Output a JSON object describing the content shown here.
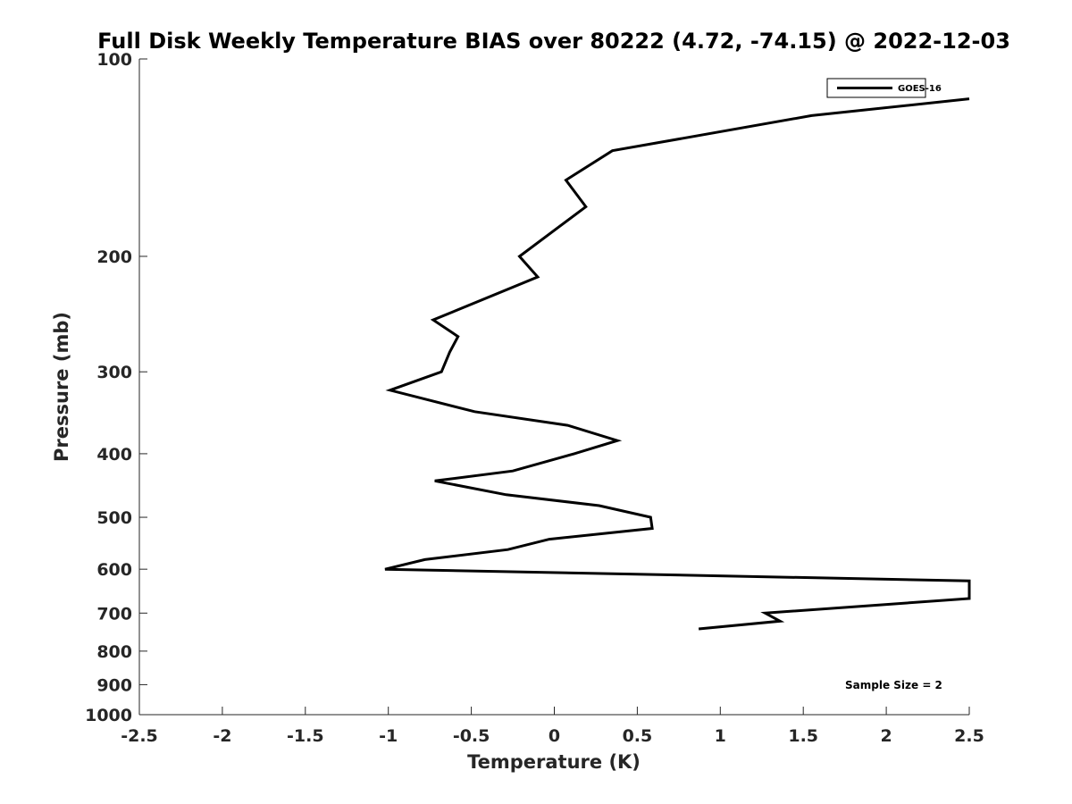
{
  "chart_data": {
    "type": "line",
    "title": "Full Disk Weekly Temperature BIAS over 80222 (4.72, -74.15) @ 2022-12-03",
    "xlabel": "Temperature (K)",
    "ylabel": "Pressure (mb)",
    "xlim": [
      -2.5,
      2.5
    ],
    "ylim": [
      100,
      1000
    ],
    "yscale": "log",
    "yreversed": true,
    "x_ticks": [
      "-2.5",
      "-2",
      "-1.5",
      "-1",
      "-0.5",
      "0",
      "0.5",
      "1",
      "1.5",
      "2",
      "2.5"
    ],
    "y_ticks": [
      "100",
      "200",
      "300",
      "400",
      "500",
      "600",
      "700",
      "800",
      "900",
      "1000"
    ],
    "grid": false,
    "legend_position": "top-right",
    "annotation": "Sample Size = 2",
    "series": [
      {
        "name": "GOES-16",
        "color": "#000000",
        "points": [
          {
            "p": 115,
            "t": 2.5
          },
          {
            "p": 122,
            "t": 1.55
          },
          {
            "p": 138,
            "t": 0.35
          },
          {
            "p": 153,
            "t": 0.07
          },
          {
            "p": 168,
            "t": 0.19
          },
          {
            "p": 200,
            "t": -0.21
          },
          {
            "p": 215,
            "t": -0.1
          },
          {
            "p": 250,
            "t": -0.73
          },
          {
            "p": 265,
            "t": -0.58
          },
          {
            "p": 280,
            "t": -0.63
          },
          {
            "p": 300,
            "t": -0.68
          },
          {
            "p": 320,
            "t": -0.99
          },
          {
            "p": 345,
            "t": -0.48
          },
          {
            "p": 362,
            "t": 0.08
          },
          {
            "p": 382,
            "t": 0.38
          },
          {
            "p": 400,
            "t": 0.12
          },
          {
            "p": 425,
            "t": -0.25
          },
          {
            "p": 440,
            "t": -0.72
          },
          {
            "p": 462,
            "t": -0.29
          },
          {
            "p": 480,
            "t": 0.27
          },
          {
            "p": 500,
            "t": 0.58
          },
          {
            "p": 520,
            "t": 0.59
          },
          {
            "p": 540,
            "t": -0.03
          },
          {
            "p": 560,
            "t": -0.28
          },
          {
            "p": 580,
            "t": -0.78
          },
          {
            "p": 600,
            "t": -1.02
          },
          {
            "p": 625,
            "t": 2.5
          },
          {
            "p": 665,
            "t": 2.5
          },
          {
            "p": 700,
            "t": 1.27
          },
          {
            "p": 720,
            "t": 1.36
          },
          {
            "p": 740,
            "t": 0.87
          }
        ]
      }
    ]
  }
}
